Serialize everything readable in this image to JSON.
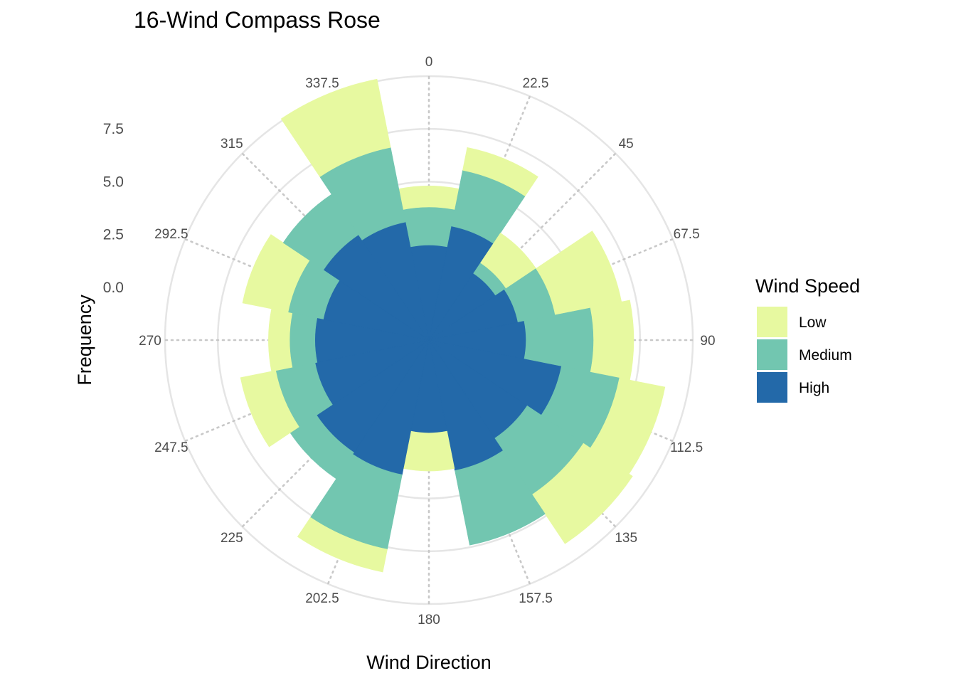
{
  "chart_data": {
    "type": "polar-stacked-bar",
    "title": "16-Wind Compass Rose",
    "xlabel": "Wind Direction",
    "ylabel": "Frequency",
    "directions": [
      "0",
      "22.5",
      "45",
      "67.5",
      "90",
      "112.5",
      "135",
      "157.5",
      "180",
      "202.5",
      "225",
      "247.5",
      "270",
      "292.5",
      "315",
      "337.5"
    ],
    "y_ticks": [
      "0.0",
      "2.5",
      "5.0",
      "7.5"
    ],
    "y_tick_values": [
      0,
      2.5,
      5,
      7.5
    ],
    "rlim": [
      -2.5,
      10.1
    ],
    "legend_title": "Wind Speed",
    "legend_position": "right",
    "series": [
      {
        "name": "High",
        "color": "#2369a9",
        "values": [
          2.0,
          3.0,
          1.3,
          1.8,
          2.1,
          3.9,
          3.1,
          3.8,
          1.9,
          4.0,
          3.9,
          3.0,
          2.9,
          2.6,
          3.5,
          3.2
        ]
      },
      {
        "name": "Medium",
        "color": "#72c6b0",
        "values": [
          1.8,
          2.7,
          0.6,
          1.8,
          3.2,
          2.8,
          3.2,
          3.6,
          0,
          3.6,
          1.5,
          1.9,
          1.2,
          1.7,
          2.3,
          3.6
        ]
      },
      {
        "name": "Low",
        "color": "#e7f9a0",
        "values": [
          1.0,
          1.1,
          1.7,
          3.2,
          1.9,
          2.2,
          2.8,
          0,
          1.8,
          1.1,
          0,
          1.7,
          1.0,
          2.2,
          0,
          3.3
        ]
      }
    ],
    "legend_order": [
      "Low",
      "Medium",
      "High"
    ],
    "grid": true
  }
}
